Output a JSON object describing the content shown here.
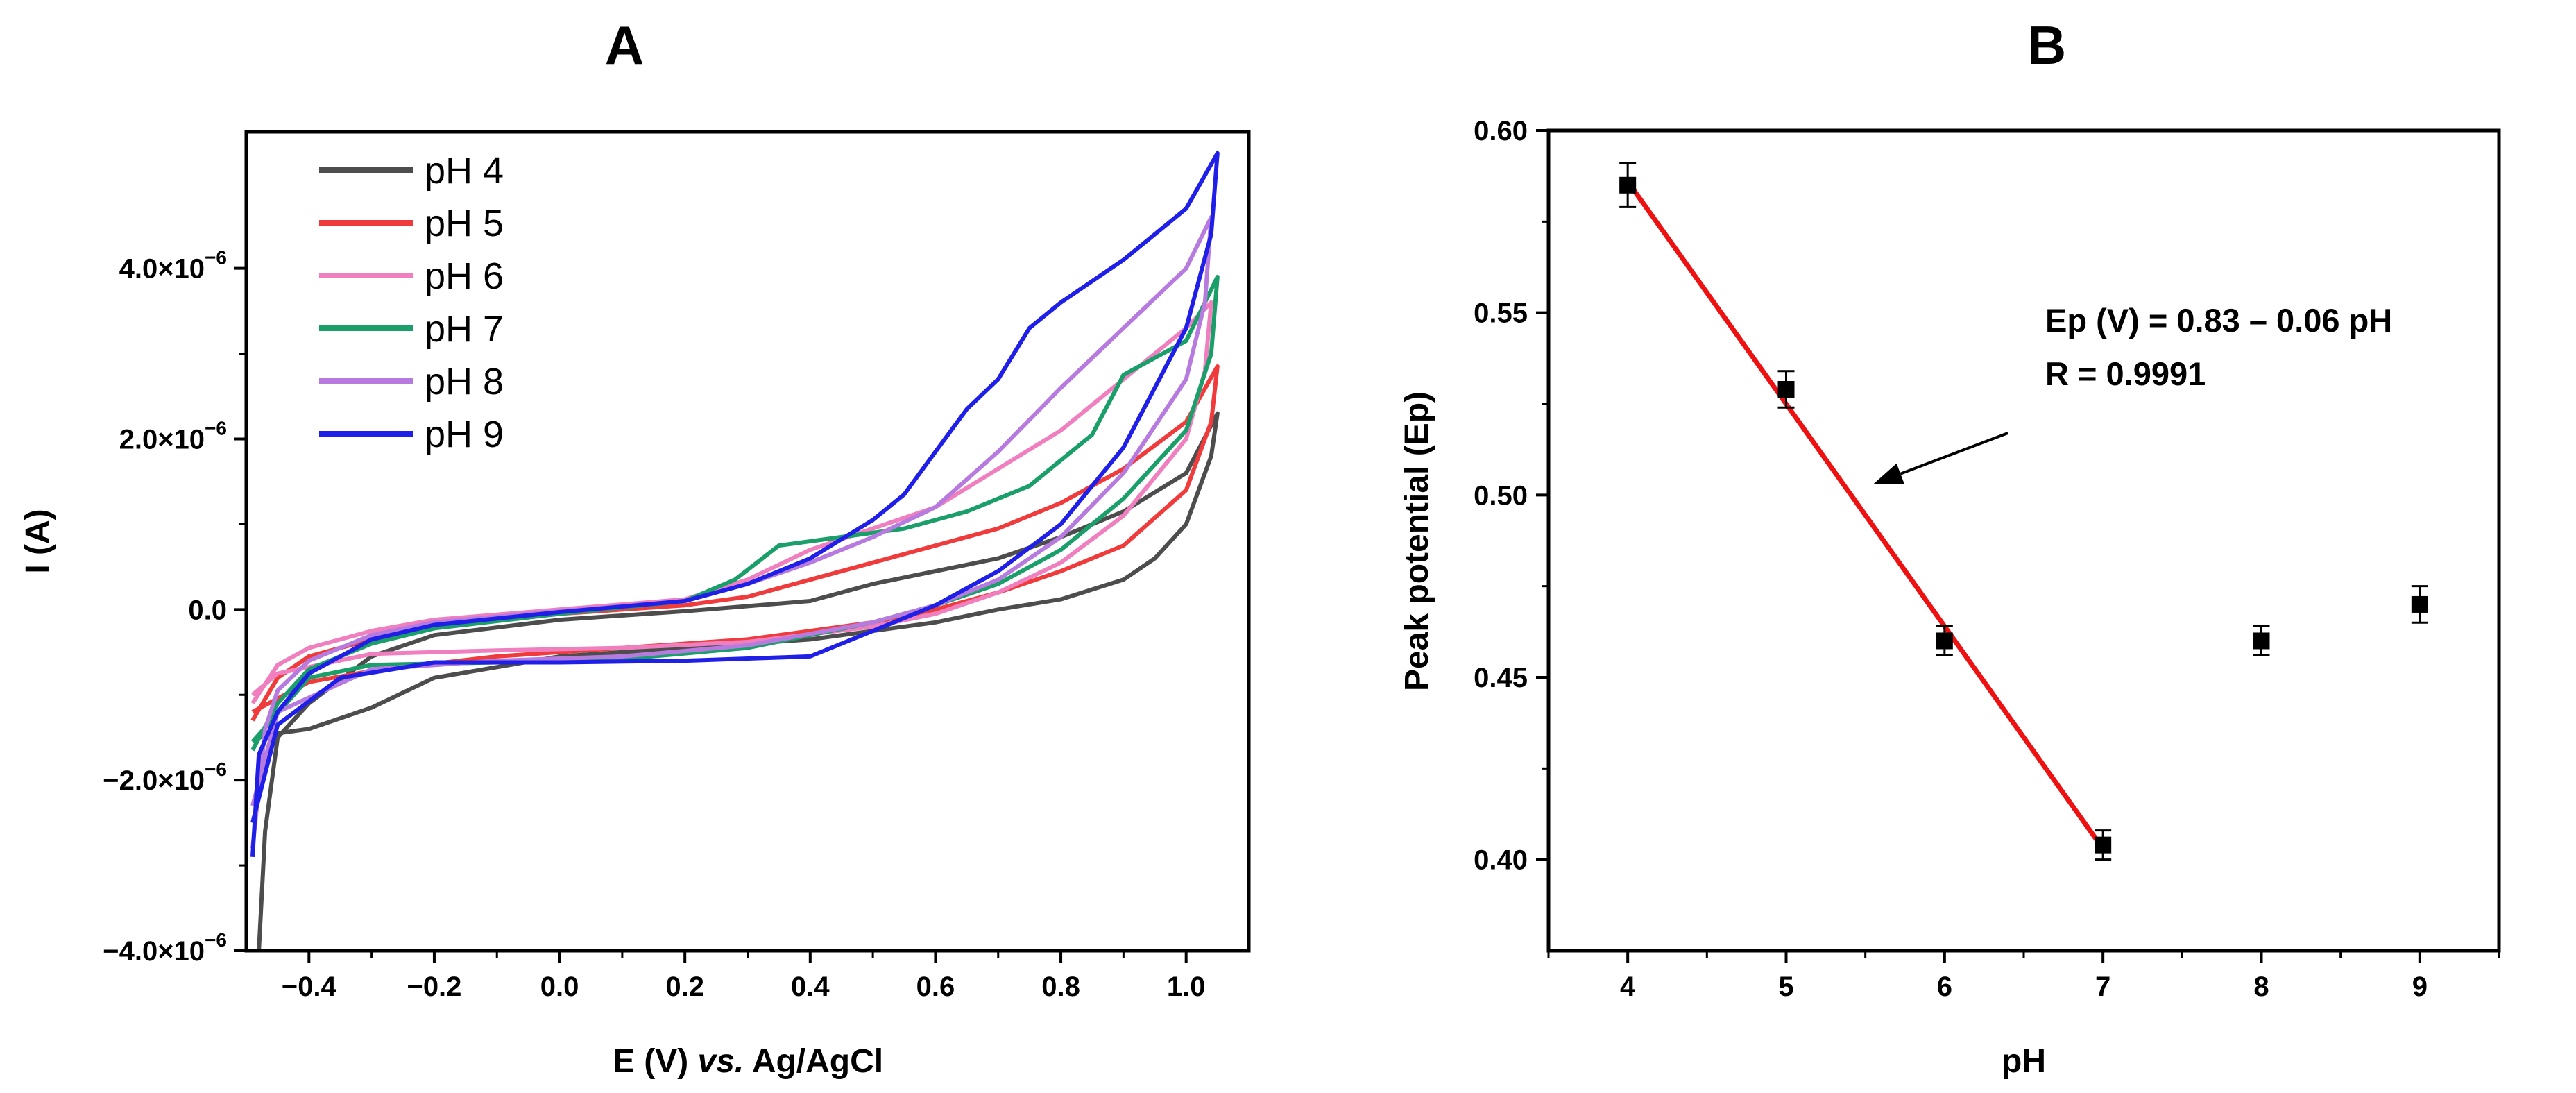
{
  "chart_data": [
    {
      "panel": "A",
      "type": "line",
      "title": "A",
      "xlabel": {
        "prefix": "E (V) ",
        "italic": "vs.",
        "suffix": " Ag/AgCl"
      },
      "ylabel": "I (A)",
      "xlim": [
        -0.5,
        1.1
      ],
      "ylim": [
        -4e-06,
        5.6e-06
      ],
      "xticks": [
        -0.4,
        -0.2,
        0.0,
        0.2,
        0.4,
        0.6,
        0.8,
        1.0
      ],
      "xtick_labels": [
        "−0.4",
        "−0.2",
        "0.0",
        "0.2",
        "0.4",
        "0.6",
        "0.8",
        "1.0"
      ],
      "yticks": [
        {
          "value": -4e-06,
          "mant": "−4.0×10",
          "exp": "−6"
        },
        {
          "value": -2e-06,
          "mant": "−2.0×10",
          "exp": "−6"
        },
        {
          "value": 0.0,
          "mant": "0.0",
          "exp": ""
        },
        {
          "value": 2e-06,
          "mant": "2.0×10",
          "exp": "−6"
        },
        {
          "value": 4e-06,
          "mant": "4.0×10",
          "exp": "−6"
        }
      ],
      "legend_position": "top-left",
      "series": [
        {
          "name": "pH 4",
          "color": "#4d4d4d",
          "points": [
            [
              -0.48,
              -4e-06
            ],
            [
              -0.47,
              -2.6e-06
            ],
            [
              -0.45,
              -1.5e-06
            ],
            [
              -0.4,
              -1.1e-06
            ],
            [
              -0.3,
              -5.5e-07
            ],
            [
              -0.2,
              -3e-07
            ],
            [
              0.0,
              -1.2e-07
            ],
            [
              0.2,
              -2e-08
            ],
            [
              0.4,
              1e-07
            ],
            [
              0.5,
              3e-07
            ],
            [
              0.6,
              4.5e-07
            ],
            [
              0.7,
              6e-07
            ],
            [
              0.8,
              8.5e-07
            ],
            [
              0.9,
              1.15e-06
            ],
            [
              1.0,
              1.6e-06
            ],
            [
              1.05,
              2.3e-06
            ],
            [
              1.04,
              1.8e-06
            ],
            [
              1.0,
              1e-06
            ],
            [
              0.95,
              6e-07
            ],
            [
              0.9,
              3.5e-07
            ],
            [
              0.8,
              1.2e-07
            ],
            [
              0.7,
              0.0
            ],
            [
              0.6,
              -1.5e-07
            ],
            [
              0.4,
              -3.5e-07
            ],
            [
              0.2,
              -4.5e-07
            ],
            [
              0.0,
              -5.5e-07
            ],
            [
              -0.2,
              -8e-07
            ],
            [
              -0.3,
              -1.15e-06
            ],
            [
              -0.4,
              -1.4e-06
            ],
            [
              -0.45,
              -1.45e-06
            ],
            [
              -0.48,
              -1.5e-06
            ]
          ]
        },
        {
          "name": "pH 5",
          "color": "#ef3b3b",
          "points": [
            [
              -0.49,
              -1.3e-06
            ],
            [
              -0.45,
              -8e-07
            ],
            [
              -0.4,
              -5.5e-07
            ],
            [
              -0.3,
              -3.5e-07
            ],
            [
              -0.2,
              -2e-07
            ],
            [
              0.0,
              -5e-08
            ],
            [
              0.2,
              5e-08
            ],
            [
              0.3,
              1.5e-07
            ],
            [
              0.4,
              3.5e-07
            ],
            [
              0.5,
              5.5e-07
            ],
            [
              0.6,
              7.5e-07
            ],
            [
              0.7,
              9.5e-07
            ],
            [
              0.8,
              1.25e-06
            ],
            [
              0.9,
              1.65e-06
            ],
            [
              1.0,
              2.2e-06
            ],
            [
              1.05,
              2.85e-06
            ],
            [
              1.04,
              2.2e-06
            ],
            [
              1.0,
              1.4e-06
            ],
            [
              0.9,
              7.5e-07
            ],
            [
              0.8,
              4.5e-07
            ],
            [
              0.7,
              2e-07
            ],
            [
              0.6,
              0.0
            ],
            [
              0.5,
              -1.5e-07
            ],
            [
              0.3,
              -3.5e-07
            ],
            [
              0.1,
              -4.5e-07
            ],
            [
              -0.1,
              -5.5e-07
            ],
            [
              -0.3,
              -7.2e-07
            ],
            [
              -0.4,
              -8.5e-07
            ],
            [
              -0.49,
              -1.2e-06
            ]
          ]
        },
        {
          "name": "pH 6",
          "color": "#f07fc0",
          "points": [
            [
              -0.49,
              -1.1e-06
            ],
            [
              -0.45,
              -6.5e-07
            ],
            [
              -0.4,
              -4.5e-07
            ],
            [
              -0.3,
              -2.5e-07
            ],
            [
              -0.2,
              -1.2e-07
            ],
            [
              0.0,
              0.0
            ],
            [
              0.2,
              1.2e-07
            ],
            [
              0.3,
              3.5e-07
            ],
            [
              0.4,
              7e-07
            ],
            [
              0.5,
              9.5e-07
            ],
            [
              0.6,
              1.2e-06
            ],
            [
              0.7,
              1.65e-06
            ],
            [
              0.8,
              2.1e-06
            ],
            [
              0.9,
              2.7e-06
            ],
            [
              1.0,
              3.3e-06
            ],
            [
              1.04,
              3.6e-06
            ],
            [
              1.03,
              2.8e-06
            ],
            [
              1.0,
              2e-06
            ],
            [
              0.9,
              1.1e-06
            ],
            [
              0.8,
              5.5e-07
            ],
            [
              0.7,
              2e-07
            ],
            [
              0.6,
              -5e-08
            ],
            [
              0.5,
              -2e-07
            ],
            [
              0.3,
              -3.8e-07
            ],
            [
              0.1,
              -4.5e-07
            ],
            [
              -0.1,
              -4.8e-07
            ],
            [
              -0.3,
              -5.2e-07
            ],
            [
              -0.45,
              -7.5e-07
            ],
            [
              -0.49,
              -1e-06
            ]
          ]
        },
        {
          "name": "pH 7",
          "color": "#1a9e6a",
          "points": [
            [
              -0.49,
              -1.65e-06
            ],
            [
              -0.45,
              -1.1e-06
            ],
            [
              -0.4,
              -7e-07
            ],
            [
              -0.3,
              -4e-07
            ],
            [
              -0.2,
              -2.2e-07
            ],
            [
              0.0,
              -5e-08
            ],
            [
              0.2,
              1e-07
            ],
            [
              0.28,
              3.5e-07
            ],
            [
              0.35,
              7.5e-07
            ],
            [
              0.45,
              8.5e-07
            ],
            [
              0.55,
              9.5e-07
            ],
            [
              0.65,
              1.15e-06
            ],
            [
              0.75,
              1.45e-06
            ],
            [
              0.85,
              2.05e-06
            ],
            [
              0.9,
              2.75e-06
            ],
            [
              1.0,
              3.15e-06
            ],
            [
              1.05,
              3.9e-06
            ],
            [
              1.04,
              3e-06
            ],
            [
              1.0,
              2.1e-06
            ],
            [
              0.9,
              1.3e-06
            ],
            [
              0.8,
              7e-07
            ],
            [
              0.7,
              3e-07
            ],
            [
              0.6,
              5e-08
            ],
            [
              0.5,
              -1.5e-07
            ],
            [
              0.4,
              -3e-07
            ],
            [
              0.3,
              -4.5e-07
            ],
            [
              0.1,
              -5.8e-07
            ],
            [
              -0.1,
              -6.2e-07
            ],
            [
              -0.3,
              -6.5e-07
            ],
            [
              -0.4,
              -8e-07
            ],
            [
              -0.49,
              -1.55e-06
            ]
          ]
        },
        {
          "name": "pH 8",
          "color": "#b77be0",
          "points": [
            [
              -0.49,
              -2.8e-06
            ],
            [
              -0.47,
              -1.4e-06
            ],
            [
              -0.45,
              -9.5e-07
            ],
            [
              -0.4,
              -6e-07
            ],
            [
              -0.3,
              -3e-07
            ],
            [
              -0.2,
              -1.5e-07
            ],
            [
              0.0,
              -2e-08
            ],
            [
              0.2,
              1e-07
            ],
            [
              0.3,
              3e-07
            ],
            [
              0.4,
              5.5e-07
            ],
            [
              0.5,
              8.5e-07
            ],
            [
              0.6,
              1.2e-06
            ],
            [
              0.7,
              1.85e-06
            ],
            [
              0.8,
              2.6e-06
            ],
            [
              0.9,
              3.3e-06
            ],
            [
              1.0,
              4e-06
            ],
            [
              1.04,
              4.6e-06
            ],
            [
              1.03,
              3.6e-06
            ],
            [
              1.0,
              2.7e-06
            ],
            [
              0.9,
              1.6e-06
            ],
            [
              0.8,
              8.5e-07
            ],
            [
              0.7,
              3.5e-07
            ],
            [
              0.6,
              5e-08
            ],
            [
              0.5,
              -1.5e-07
            ],
            [
              0.3,
              -4.2e-07
            ],
            [
              0.1,
              -5.5e-07
            ],
            [
              -0.1,
              -6e-07
            ],
            [
              -0.3,
              -7e-07
            ],
            [
              -0.45,
              -1.2e-06
            ],
            [
              -0.49,
              -2.3e-06
            ]
          ]
        },
        {
          "name": "pH 9",
          "color": "#1f1fe8",
          "points": [
            [
              -0.49,
              -2.9e-06
            ],
            [
              -0.48,
              -1.7e-06
            ],
            [
              -0.45,
              -1.2e-06
            ],
            [
              -0.4,
              -7.5e-07
            ],
            [
              -0.3,
              -3.5e-07
            ],
            [
              -0.2,
              -1.8e-07
            ],
            [
              0.0,
              -3e-08
            ],
            [
              0.2,
              1e-07
            ],
            [
              0.3,
              3e-07
            ],
            [
              0.4,
              6e-07
            ],
            [
              0.5,
              1.05e-06
            ],
            [
              0.55,
              1.35e-06
            ],
            [
              0.6,
              1.85e-06
            ],
            [
              0.65,
              2.35e-06
            ],
            [
              0.7,
              2.7e-06
            ],
            [
              0.75,
              3.3e-06
            ],
            [
              0.8,
              3.6e-06
            ],
            [
              0.9,
              4.1e-06
            ],
            [
              1.0,
              4.7e-06
            ],
            [
              1.05,
              5.35e-06
            ],
            [
              1.04,
              4.4e-06
            ],
            [
              1.0,
              3.3e-06
            ],
            [
              0.9,
              1.9e-06
            ],
            [
              0.8,
              1e-06
            ],
            [
              0.7,
              4.5e-07
            ],
            [
              0.6,
              5e-08
            ],
            [
              0.5,
              -2.5e-07
            ],
            [
              0.4,
              -5.5e-07
            ],
            [
              0.2,
              -6e-07
            ],
            [
              0.0,
              -6.2e-07
            ],
            [
              -0.2,
              -6.2e-07
            ],
            [
              -0.35,
              -8e-07
            ],
            [
              -0.45,
              -1.35e-06
            ],
            [
              -0.49,
              -2.5e-06
            ]
          ]
        }
      ]
    },
    {
      "panel": "B",
      "type": "scatter",
      "title": "B",
      "xlabel": "pH",
      "ylabel": "Peak potential (Ep)",
      "xlim": [
        3.5,
        9.5
      ],
      "ylim": [
        0.375,
        0.6
      ],
      "xticks": [
        4,
        5,
        6,
        7,
        8,
        9
      ],
      "xtick_labels": [
        "4",
        "5",
        "6",
        "7",
        "8",
        "9"
      ],
      "yticks": [
        0.4,
        0.45,
        0.5,
        0.55,
        0.6
      ],
      "ytick_labels": [
        "0.40",
        "0.45",
        "0.50",
        "0.55",
        "0.60"
      ],
      "x": [
        4,
        5,
        6,
        7,
        8,
        9
      ],
      "y": [
        0.585,
        0.529,
        0.46,
        0.404,
        0.46,
        0.47
      ],
      "yerr": [
        0.006,
        0.005,
        0.004,
        0.004,
        0.004,
        0.005
      ],
      "fit": {
        "x0": 4,
        "x1": 7,
        "y0": 0.586,
        "y1": 0.403,
        "color": "#ee1111"
      },
      "annotation": {
        "line1": "Ep (V) = 0.83 – 0.06 pH",
        "line2": "R = 0.9991",
        "arrow_to": [
          5.55,
          0.503
        ],
        "arrow_from": [
          6.4,
          0.517
        ]
      }
    }
  ]
}
